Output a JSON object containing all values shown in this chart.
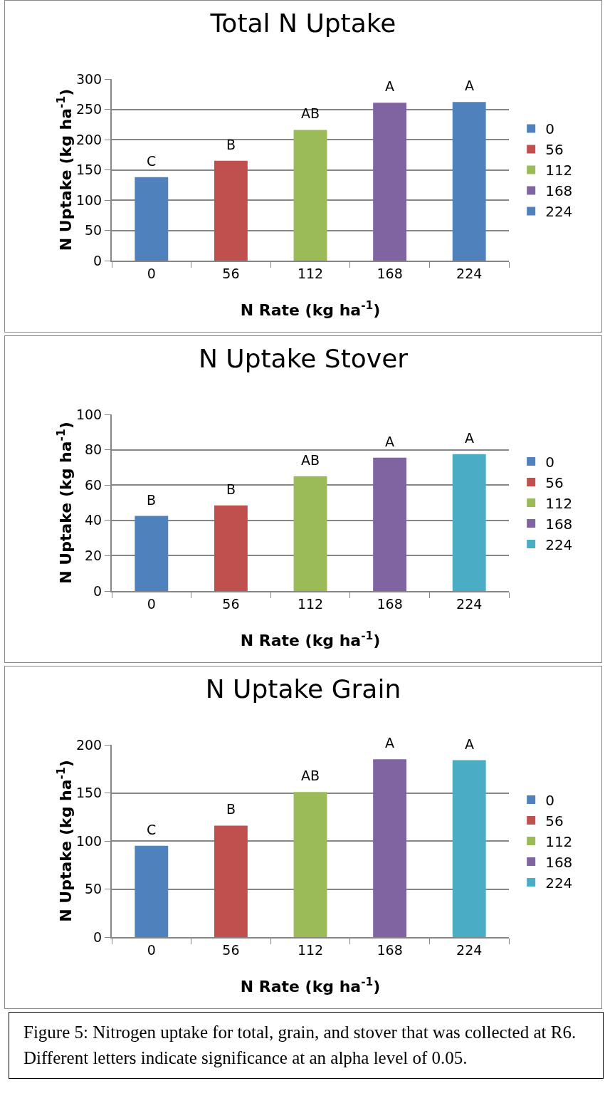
{
  "chart_data": [
    {
      "type": "bar",
      "title": "Total N Uptake",
      "xlabel": "N Rate (kg ha$^{-1}$)",
      "ylabel": "N Uptake (kg ha$^{-1}$)",
      "categories": [
        "0",
        "56",
        "112",
        "168",
        "224"
      ],
      "series": [
        {
          "name": "0",
          "color": "#4f81bd",
          "values": [
            138,
            null,
            null,
            null,
            null
          ]
        },
        {
          "name": "56",
          "color": "#c0504d",
          "values": [
            null,
            165,
            null,
            null,
            null
          ]
        },
        {
          "name": "112",
          "color": "#9bbb59",
          "values": [
            null,
            null,
            216,
            null,
            null
          ]
        },
        {
          "name": "168",
          "color": "#8064a2",
          "values": [
            null,
            null,
            null,
            261,
            null
          ]
        },
        {
          "name": "224",
          "color": "#4f81bd",
          "values": [
            null,
            null,
            null,
            null,
            262
          ]
        }
      ],
      "ylim": [
        0,
        300
      ],
      "yticks": [
        0,
        50,
        100,
        150,
        200,
        250,
        300
      ],
      "grid": "y",
      "legend": "right",
      "annotations": [
        {
          "text": "C",
          "x": "0",
          "y": 138
        },
        {
          "text": "B",
          "x": "56",
          "y": 165
        },
        {
          "text": "AB",
          "x": "112",
          "y": 216
        },
        {
          "text": "A",
          "x": "168",
          "y": 261
        },
        {
          "text": "A",
          "x": "224",
          "y": 262
        }
      ]
    },
    {
      "type": "bar",
      "title": "N Uptake Stover",
      "xlabel": "N Rate (kg ha$^{-1}$)",
      "ylabel": "N Uptake (kg ha$^{-1}$)",
      "categories": [
        "0",
        "56",
        "112",
        "168",
        "224"
      ],
      "series": [
        {
          "name": "0",
          "color": "#4f81bd",
          "values": [
            42.5,
            null,
            null,
            null,
            null
          ]
        },
        {
          "name": "56",
          "color": "#c0504d",
          "values": [
            null,
            48.5,
            null,
            null,
            null
          ]
        },
        {
          "name": "112",
          "color": "#9bbb59",
          "values": [
            null,
            null,
            65,
            null,
            null
          ]
        },
        {
          "name": "168",
          "color": "#8064a2",
          "values": [
            null,
            null,
            null,
            75.5,
            null
          ]
        },
        {
          "name": "224",
          "color": "#4bacc6",
          "values": [
            null,
            null,
            null,
            null,
            77.5
          ]
        }
      ],
      "ylim": [
        0,
        100
      ],
      "yticks": [
        0,
        20,
        40,
        60,
        80,
        100
      ],
      "grid": "y",
      "legend": "right",
      "annotations": [
        {
          "text": "B",
          "x": "0",
          "y": 42.5
        },
        {
          "text": "B",
          "x": "56",
          "y": 48.5
        },
        {
          "text": "AB",
          "x": "112",
          "y": 65
        },
        {
          "text": "A",
          "x": "168",
          "y": 75.5
        },
        {
          "text": "A",
          "x": "224",
          "y": 77.5
        }
      ]
    },
    {
      "type": "bar",
      "title": "N Uptake Grain",
      "xlabel": "N Rate (kg ha$^{-1}$)",
      "ylabel": "N Uptake (kg ha$^{-1}$)",
      "categories": [
        "0",
        "56",
        "112",
        "168",
        "224"
      ],
      "series": [
        {
          "name": "0",
          "color": "#4f81bd",
          "values": [
            95,
            null,
            null,
            null,
            null
          ]
        },
        {
          "name": "56",
          "color": "#c0504d",
          "values": [
            null,
            116,
            null,
            null,
            null
          ]
        },
        {
          "name": "112",
          "color": "#9bbb59",
          "values": [
            null,
            null,
            151,
            null,
            null
          ]
        },
        {
          "name": "168",
          "color": "#8064a2",
          "values": [
            null,
            null,
            null,
            185,
            null
          ]
        },
        {
          "name": "224",
          "color": "#4bacc6",
          "values": [
            null,
            null,
            null,
            null,
            184
          ]
        }
      ],
      "ylim": [
        0,
        200
      ],
      "yticks": [
        0,
        50,
        100,
        150,
        200
      ],
      "grid": "y",
      "legend": "right",
      "annotations": [
        {
          "text": "C",
          "x": "0",
          "y": 95
        },
        {
          "text": "B",
          "x": "56",
          "y": 116
        },
        {
          "text": "AB",
          "x": "112",
          "y": 151
        },
        {
          "text": "A",
          "x": "168",
          "y": 185
        },
        {
          "text": "A",
          "x": "224",
          "y": 184
        }
      ]
    },
    {
      "type": "other",
      "annotations": [
        "Figure 5: Nitrogen uptake for total, grain, and stover that was collected at R6.  Different letters indicate significance at an alpha level of 0.05."
      ]
    }
  ]
}
